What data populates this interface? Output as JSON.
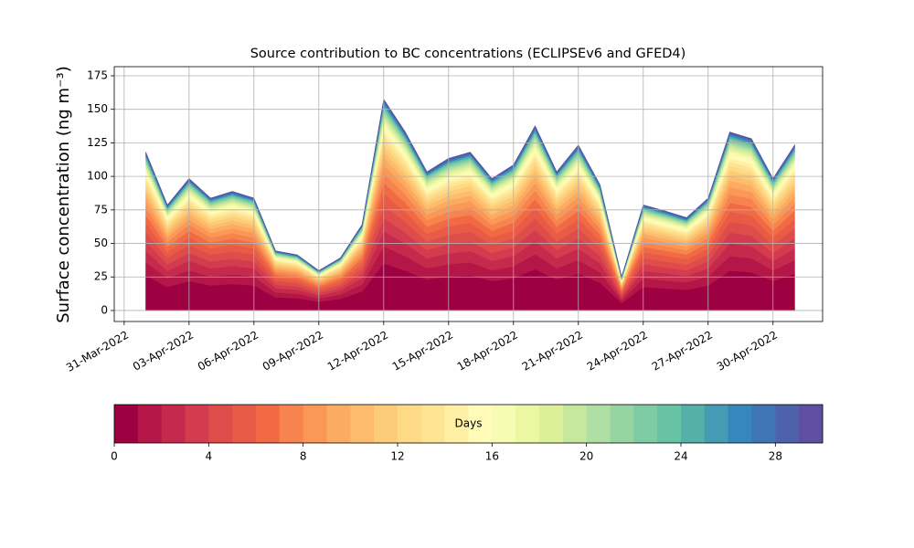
{
  "chart_data": {
    "type": "stackedarea",
    "title": "Source contribution to BC concentrations (ECLIPSEv6 and GFED4)",
    "ylabel": "Surface concentration (ng m⁻³)",
    "grid": true,
    "xlim": [
      "2022-03-30T13:00",
      "2022-05-02T07:00"
    ],
    "ylim": [
      -8.2,
      181.8
    ],
    "yticks": [
      0,
      25,
      50,
      75,
      100,
      125,
      150,
      175
    ],
    "xticks": [
      {
        "value": "2022-03-31",
        "label": "31-Mar-2022"
      },
      {
        "value": "2022-04-03",
        "label": "03-Apr-2022"
      },
      {
        "value": "2022-04-06",
        "label": "06-Apr-2022"
      },
      {
        "value": "2022-04-09",
        "label": "09-Apr-2022"
      },
      {
        "value": "2022-04-12",
        "label": "12-Apr-2022"
      },
      {
        "value": "2022-04-15",
        "label": "15-Apr-2022"
      },
      {
        "value": "2022-04-18",
        "label": "18-Apr-2022"
      },
      {
        "value": "2022-04-21",
        "label": "21-Apr-2022"
      },
      {
        "value": "2022-04-24",
        "label": "24-Apr-2022"
      },
      {
        "value": "2022-04-27",
        "label": "27-Apr-2022"
      },
      {
        "value": "2022-04-30",
        "label": "30-Apr-2022"
      }
    ],
    "x": [
      "2022-04-01",
      "2022-04-02",
      "2022-04-03",
      "2022-04-04",
      "2022-04-05",
      "2022-04-06",
      "2022-04-07",
      "2022-04-08",
      "2022-04-09",
      "2022-04-10",
      "2022-04-11",
      "2022-04-12",
      "2022-04-13",
      "2022-04-14",
      "2022-04-15",
      "2022-04-16",
      "2022-04-17",
      "2022-04-18",
      "2022-04-19",
      "2022-04-20",
      "2022-04-21",
      "2022-04-22",
      "2022-04-23",
      "2022-04-24",
      "2022-04-25",
      "2022-04-26",
      "2022-04-27",
      "2022-04-28",
      "2022-04-29",
      "2022-04-30",
      "2022-05-01"
    ],
    "colorbar": {
      "label": "Days",
      "lim": [
        0,
        30
      ],
      "ticks": [
        0,
        4,
        8,
        12,
        16,
        20,
        24,
        28
      ]
    },
    "series": [
      {
        "color": "#9e0142",
        "values": [
          26.4,
          17.6,
          22,
          18.7,
          19.8,
          18.7,
          9.9,
          9.2,
          6.6,
          8.8,
          14.3,
          35.2,
          29.7,
          23.1,
          25.3,
          26.4,
          22,
          24.2,
          30.8,
          23.1,
          27.5,
          20.9,
          5.5,
          17.6,
          16.5,
          15.4,
          18.7,
          29.7,
          28.6,
          22,
          27.5
        ]
      },
      {
        "color": "#b41747",
        "values": [
          9.6,
          6.4,
          8,
          6.8,
          7.2,
          6.8,
          3.6,
          3.4,
          2.4,
          3.2,
          5.2,
          12.8,
          10.8,
          8.4,
          9.2,
          9.6,
          8,
          8.8,
          11.2,
          8.4,
          10,
          7.6,
          2,
          6.4,
          6,
          5.6,
          6.8,
          10.8,
          10.4,
          8,
          10
        ]
      },
      {
        "color": "#c52a4c",
        "values": [
          8.4,
          5.6,
          7,
          6,
          6.3,
          6,
          3.2,
          2.9,
          2.1,
          2.8,
          4.6,
          11.2,
          9.5,
          7.4,
          8.1,
          8.4,
          7,
          7.7,
          9.8,
          7.4,
          8.8,
          6.7,
          1.8,
          5.6,
          5.3,
          4.9,
          6,
          9.5,
          9.1,
          7,
          8.8
        ]
      },
      {
        "color": "#d33c4e",
        "values": [
          7.2,
          4.8,
          6,
          5.1,
          5.4,
          5.1,
          2.7,
          2.5,
          1.8,
          2.4,
          3.9,
          9.6,
          8.1,
          6.3,
          6.9,
          7.2,
          6,
          6.6,
          8.4,
          6.3,
          7.5,
          5.7,
          1.5,
          4.8,
          4.5,
          4.2,
          5.1,
          8.1,
          7.8,
          6,
          7.5
        ]
      },
      {
        "color": "#df4d4b",
        "values": [
          7.2,
          4.8,
          6,
          5.1,
          5.4,
          5.1,
          2.7,
          2.5,
          1.8,
          2.4,
          3.9,
          9.6,
          8.1,
          6.3,
          6.9,
          7.2,
          6,
          6.6,
          8.4,
          6.3,
          7.5,
          5.7,
          1.5,
          4.8,
          4.5,
          4.2,
          5.1,
          8.1,
          7.8,
          6,
          7.5
        ]
      },
      {
        "color": "#e85b47",
        "values": [
          6.6,
          4.4,
          5.5,
          4.7,
          5,
          4.7,
          2.5,
          2.3,
          1.7,
          2.2,
          3.6,
          8.8,
          7.4,
          5.8,
          6.3,
          6.6,
          5.5,
          6.1,
          7.7,
          5.8,
          6.9,
          5.2,
          1.4,
          4.4,
          4.1,
          3.9,
          4.7,
          7.4,
          7.2,
          5.5,
          6.9
        ]
      },
      {
        "color": "#f26a43",
        "values": [
          6,
          4,
          5,
          4.3,
          4.5,
          4.3,
          2.3,
          2.1,
          1.5,
          2,
          3.3,
          8,
          6.8,
          5.3,
          5.8,
          6,
          5,
          5.5,
          7,
          5.3,
          6.3,
          4.8,
          1.3,
          4,
          3.8,
          3.5,
          4.3,
          6.8,
          6.5,
          5,
          6.3
        ]
      },
      {
        "color": "#f7844e",
        "values": [
          5.4,
          3.6,
          4.5,
          3.8,
          4.1,
          3.8,
          2,
          1.9,
          1.4,
          1.8,
          2.9,
          7.2,
          6.1,
          4.7,
          5.2,
          5.4,
          4.5,
          5,
          6.3,
          4.7,
          5.6,
          4.3,
          1.1,
          3.6,
          3.4,
          3.2,
          3.8,
          6.1,
          5.9,
          4.5,
          5.6
        ]
      },
      {
        "color": "#fa9857",
        "values": [
          4.8,
          3.2,
          4,
          3.4,
          3.6,
          3.4,
          1.8,
          1.7,
          1.2,
          1.6,
          2.6,
          6.4,
          5.4,
          4.2,
          4.6,
          4.8,
          4,
          4.4,
          5.6,
          4.2,
          5,
          3.8,
          1,
          3.2,
          3,
          2.8,
          3.4,
          5.4,
          5.2,
          4,
          5
        ]
      },
      {
        "color": "#fcac60",
        "values": [
          4.2,
          2.8,
          3.5,
          3,
          3.2,
          3,
          1.6,
          1.5,
          1.1,
          1.4,
          2.3,
          5.6,
          4.7,
          3.7,
          4,
          4.2,
          3.5,
          3.9,
          4.9,
          3.7,
          4.4,
          3.3,
          0.9,
          2.8,
          2.6,
          2.5,
          3,
          4.7,
          4.6,
          3.5,
          4.4
        ]
      },
      {
        "color": "#fdbd6d",
        "values": [
          3.6,
          2.4,
          3,
          2.6,
          2.7,
          2.6,
          1.4,
          1.3,
          0.9,
          1.2,
          2,
          4.8,
          4.1,
          3.2,
          3.5,
          3.6,
          3,
          3.3,
          4.2,
          3.2,
          3.8,
          2.9,
          0.8,
          2.4,
          2.3,
          2.1,
          2.6,
          4.1,
          3.9,
          3,
          3.8
        ]
      },
      {
        "color": "#fdcc7a",
        "values": [
          3.4,
          2.2,
          2.8,
          2.4,
          2.5,
          2.4,
          1.3,
          1.2,
          0.8,
          1.1,
          1.8,
          4.5,
          3.8,
          2.9,
          3.2,
          3.4,
          2.8,
          3.1,
          3.9,
          2.9,
          3.5,
          2.7,
          0.7,
          2.2,
          2.1,
          2,
          2.4,
          3.8,
          3.6,
          2.8,
          3.5
        ]
      },
      {
        "color": "#fed986",
        "values": [
          3,
          2,
          2.5,
          2.1,
          2.3,
          2.1,
          1.1,
          1.1,
          0.8,
          1,
          1.6,
          4,
          3.4,
          2.6,
          2.9,
          3,
          2.5,
          2.8,
          3.5,
          2.6,
          3.1,
          2.4,
          0.6,
          2,
          1.9,
          1.8,
          2.1,
          3.4,
          3.3,
          2.5,
          3.1
        ]
      },
      {
        "color": "#fee593",
        "values": [
          2.6,
          1.8,
          2.2,
          1.9,
          2,
          1.9,
          1,
          0.9,
          0.7,
          0.9,
          1.4,
          3.5,
          3,
          2.3,
          2.5,
          2.6,
          2.2,
          2.4,
          3.1,
          2.3,
          2.8,
          2.1,
          0.6,
          1.8,
          1.7,
          1.5,
          1.9,
          3,
          2.9,
          2.2,
          2.8
        ]
      },
      {
        "color": "#fff0a5",
        "values": [
          2.4,
          1.6,
          2,
          1.7,
          1.8,
          1.7,
          0.9,
          0.8,
          0.6,
          0.8,
          1.3,
          3.2,
          2.7,
          2.1,
          2.3,
          2.4,
          2,
          2.2,
          2.8,
          2.1,
          2.5,
          1.9,
          0.5,
          1.6,
          1.5,
          1.4,
          1.7,
          2.7,
          2.6,
          2,
          2.5
        ]
      },
      {
        "color": "#fffbb8",
        "values": [
          2.2,
          1.4,
          1.8,
          1.5,
          1.6,
          1.5,
          0.8,
          0.8,
          0.5,
          0.7,
          1.2,
          2.9,
          2.4,
          1.9,
          2.1,
          2.2,
          1.8,
          2,
          2.5,
          1.9,
          2.3,
          1.7,
          0.5,
          1.4,
          1.4,
          1.3,
          1.5,
          2.4,
          2.3,
          1.8,
          2.3
        ]
      },
      {
        "color": "#f7fcb4",
        "values": [
          1.9,
          1.3,
          1.6,
          1.4,
          1.4,
          1.4,
          0.7,
          0.7,
          0.5,
          0.6,
          1,
          2.6,
          2.2,
          1.7,
          1.8,
          1.9,
          1.6,
          1.8,
          2.2,
          1.7,
          2,
          1.5,
          0.4,
          1.3,
          1.2,
          1.1,
          1.4,
          2.2,
          2.1,
          1.6,
          2
        ]
      },
      {
        "color": "#ecf7a2",
        "values": [
          1.7,
          1.1,
          1.4,
          1.2,
          1.3,
          1.2,
          0.6,
          0.6,
          0.4,
          0.6,
          0.9,
          2.2,
          1.9,
          1.5,
          1.6,
          1.7,
          1.4,
          1.5,
          2,
          1.5,
          1.8,
          1.3,
          0.4,
          1.1,
          1.1,
          1,
          1.2,
          1.9,
          1.8,
          1.4,
          1.8
        ]
      },
      {
        "color": "#dcf09a",
        "values": [
          1.6,
          1,
          1.3,
          1.1,
          1.2,
          1.1,
          0.6,
          0.5,
          0.4,
          0.5,
          0.8,
          2.1,
          1.8,
          1.4,
          1.5,
          1.6,
          1.3,
          1.4,
          1.8,
          1.4,
          1.6,
          1.2,
          0.3,
          1,
          1,
          0.9,
          1.1,
          1.8,
          1.7,
          1.3,
          1.6
        ]
      },
      {
        "color": "#c6e79e",
        "values": [
          1.4,
          1,
          1.2,
          1,
          1.1,
          1,
          0.5,
          0.5,
          0.4,
          0.5,
          0.8,
          1.9,
          1.6,
          1.3,
          1.4,
          1.4,
          1.2,
          1.3,
          1.7,
          1.3,
          1.5,
          1.1,
          0.3,
          1,
          0.9,
          0.8,
          1,
          1.6,
          1.6,
          1.2,
          1.5
        ]
      },
      {
        "color": "#b0dfa3",
        "values": [
          1.3,
          0.9,
          1.1,
          0.9,
          1,
          0.9,
          0.5,
          0.5,
          0.3,
          0.4,
          0.7,
          1.8,
          1.5,
          1.2,
          1.3,
          1.3,
          1.1,
          1.2,
          1.5,
          1.2,
          1.4,
          1,
          0.3,
          0.9,
          0.8,
          0.8,
          0.9,
          1.5,
          1.4,
          1.1,
          1.4
        ]
      },
      {
        "color": "#96d4a4",
        "values": [
          1.2,
          0.8,
          1,
          0.9,
          0.9,
          0.9,
          0.5,
          0.4,
          0.3,
          0.4,
          0.7,
          1.6,
          1.4,
          1.1,
          1.2,
          1.2,
          1,
          1.1,
          1.4,
          1.1,
          1.3,
          1,
          0.3,
          0.8,
          0.8,
          0.7,
          0.9,
          1.4,
          1.3,
          1,
          1.3
        ]
      },
      {
        "color": "#7ecba4",
        "values": [
          1.1,
          0.7,
          0.9,
          0.8,
          0.8,
          0.8,
          0.4,
          0.4,
          0.3,
          0.4,
          0.6,
          1.4,
          1.2,
          0.9,
          1,
          1.1,
          0.9,
          1,
          1.3,
          0.9,
          1.1,
          0.9,
          0.2,
          0.7,
          0.7,
          0.6,
          0.8,
          1.2,
          1.2,
          0.9,
          1.1
        ]
      },
      {
        "color": "#68c3a5",
        "values": [
          1,
          0.6,
          0.8,
          0.7,
          0.7,
          0.7,
          0.4,
          0.3,
          0.2,
          0.3,
          0.5,
          1.3,
          1.1,
          0.8,
          0.9,
          1,
          0.8,
          0.9,
          1.1,
          0.8,
          1,
          0.8,
          0.2,
          0.6,
          0.6,
          0.6,
          0.7,
          1.1,
          1,
          0.8,
          1
        ]
      },
      {
        "color": "#55b0aa",
        "values": [
          0.8,
          0.6,
          0.7,
          0.6,
          0.6,
          0.6,
          0.3,
          0.3,
          0.2,
          0.3,
          0.5,
          1.1,
          0.9,
          0.7,
          0.8,
          0.8,
          0.7,
          0.8,
          1,
          0.7,
          0.9,
          0.7,
          0.2,
          0.6,
          0.5,
          0.5,
          0.6,
          0.9,
          0.9,
          0.7,
          0.9
        ]
      },
      {
        "color": "#439bb4",
        "values": [
          0.7,
          0.5,
          0.6,
          0.5,
          0.5,
          0.5,
          0.3,
          0.3,
          0.2,
          0.2,
          0.4,
          1,
          0.8,
          0.6,
          0.7,
          0.7,
          0.6,
          0.7,
          0.8,
          0.6,
          0.8,
          0.6,
          0.2,
          0.5,
          0.5,
          0.4,
          0.5,
          0.8,
          0.8,
          0.6,
          0.8
        ]
      },
      {
        "color": "#3687bc",
        "values": [
          0.7,
          0.5,
          0.6,
          0.5,
          0.5,
          0.5,
          0.3,
          0.3,
          0.2,
          0.2,
          0.4,
          1,
          0.8,
          0.6,
          0.7,
          0.7,
          0.6,
          0.7,
          0.8,
          0.6,
          0.8,
          0.6,
          0.2,
          0.5,
          0.5,
          0.4,
          0.5,
          0.8,
          0.8,
          0.6,
          0.8
        ]
      },
      {
        "color": "#3f75b5",
        "values": [
          0.6,
          0.4,
          0.5,
          0.4,
          0.5,
          0.4,
          0.2,
          0.2,
          0.2,
          0.2,
          0.3,
          0.8,
          0.7,
          0.5,
          0.6,
          0.6,
          0.5,
          0.6,
          0.7,
          0.5,
          0.6,
          0.5,
          0.1,
          0.4,
          0.4,
          0.4,
          0.4,
          0.7,
          0.7,
          0.5,
          0.6
        ]
      },
      {
        "color": "#4e62ab",
        "values": [
          0.6,
          0.4,
          0.5,
          0.4,
          0.5,
          0.4,
          0.2,
          0.2,
          0.2,
          0.2,
          0.3,
          0.8,
          0.7,
          0.5,
          0.6,
          0.6,
          0.5,
          0.6,
          0.7,
          0.5,
          0.6,
          0.5,
          0.1,
          0.4,
          0.4,
          0.4,
          0.4,
          0.7,
          0.7,
          0.5,
          0.6
        ]
      },
      {
        "color": "#5e4fa2",
        "values": [
          0.5,
          0.3,
          0.4,
          0.3,
          0.4,
          0.3,
          0.2,
          0.2,
          0.1,
          0.2,
          0.3,
          0.6,
          0.5,
          0.4,
          0.5,
          0.5,
          0.4,
          0.4,
          0.6,
          0.4,
          0.5,
          0.4,
          0.1,
          0.3,
          0.3,
          0.3,
          0.3,
          0.5,
          0.5,
          0.4,
          0.5
        ]
      }
    ]
  }
}
